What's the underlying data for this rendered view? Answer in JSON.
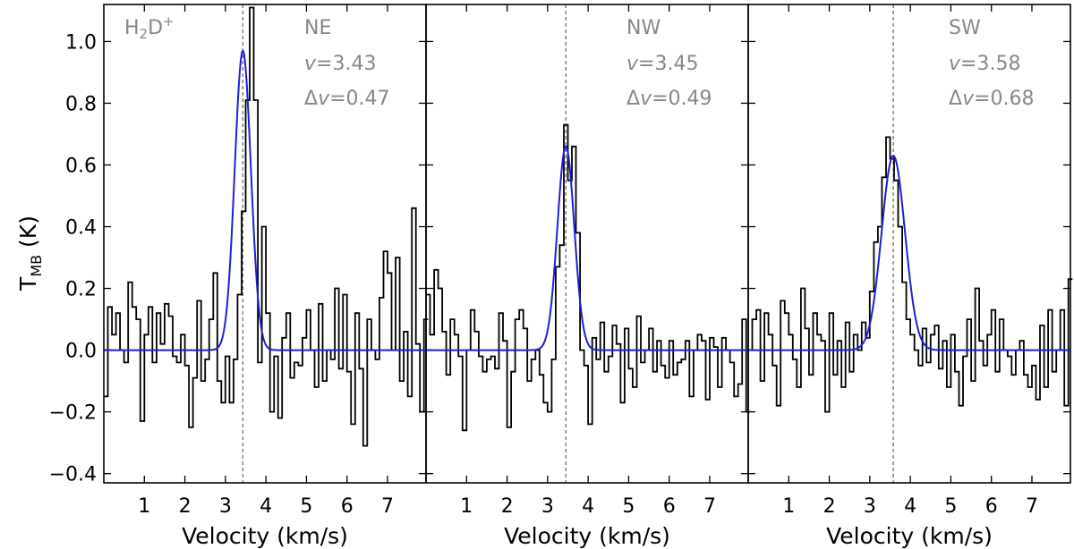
{
  "chart_data": {
    "type": "line",
    "ylabel_main": "T",
    "ylabel_sub": "MB",
    "ylabel_unit": " (K)",
    "xlabel": "Velocity (km/s)",
    "xlim": [
      0,
      7.95
    ],
    "ylim": [
      -0.43,
      1.12
    ],
    "x_ticks": [
      1,
      2,
      3,
      4,
      5,
      6,
      7
    ],
    "y_ticks": [
      -0.4,
      -0.2,
      0.0,
      0.2,
      0.4,
      0.6,
      0.8,
      1.0
    ],
    "y_tick_labels": [
      "−0.4",
      "−0.2",
      "0.0",
      "0.2",
      "0.4",
      "0.6",
      "0.8",
      "1.0"
    ],
    "species_main": "H",
    "species_sub": "2",
    "species_rest": "D",
    "species_sup": "+",
    "colors": {
      "spectrum": "#000000",
      "fit": "#1f1fd6",
      "annotation": "#888888",
      "center_line": "#666666"
    },
    "channel_width": 0.1,
    "x_start": 0.0,
    "panels": [
      {
        "label": "NE",
        "v_text": "=3.43",
        "dv_text": "=0.47",
        "v": 3.43,
        "dv": 0.47,
        "fit_amplitude": 0.97,
        "spectrum": [
          -0.15,
          0.14,
          0.05,
          0.12,
          0.0,
          -0.04,
          0.22,
          0.14,
          0.1,
          -0.23,
          0.05,
          0.14,
          -0.04,
          0.12,
          0.02,
          0.15,
          0.11,
          -0.02,
          -0.04,
          0.05,
          -0.05,
          -0.25,
          -0.09,
          0.16,
          -0.1,
          -0.03,
          0.1,
          0.25,
          -0.1,
          -0.17,
          -0.02,
          -0.17,
          -0.03,
          0.18,
          0.45,
          0.81,
          1.11,
          0.81,
          -0.04,
          0.4,
          0.12,
          -0.2,
          -0.02,
          -0.22,
          0.04,
          0.12,
          -0.09,
          -0.04,
          -0.05,
          0.04,
          0.13,
          0.0,
          -0.12,
          0.15,
          -0.1,
          0.0,
          -0.03,
          0.2,
          -0.06,
          0.18,
          -0.07,
          -0.24,
          0.12,
          -0.06,
          -0.31,
          0.1,
          0.0,
          -0.03,
          0.17,
          0.32,
          0.25,
          0.0,
          0.3,
          -0.1,
          0.06,
          -0.15,
          0.46,
          0.02,
          -0.2,
          0.1
        ]
      },
      {
        "label": "NW",
        "v_text": "=3.45",
        "dv_text": "=0.49",
        "v": 3.45,
        "dv": 0.49,
        "fit_amplitude": 0.66,
        "spectrum": [
          0.18,
          0.05,
          0.26,
          0.2,
          0.06,
          -0.08,
          0.1,
          0.05,
          -0.02,
          -0.26,
          0.0,
          0.13,
          0.06,
          -0.02,
          -0.07,
          -0.03,
          -0.02,
          -0.06,
          0.12,
          0.03,
          -0.25,
          -0.07,
          0.1,
          0.13,
          0.07,
          -0.1,
          -0.03,
          0.0,
          -0.08,
          -0.17,
          -0.2,
          -0.03,
          0.27,
          0.34,
          0.73,
          0.55,
          0.66,
          0.38,
          0.0,
          -0.05,
          -0.24,
          0.04,
          -0.03,
          0.09,
          -0.07,
          -0.02,
          0.08,
          0.02,
          -0.17,
          0.07,
          -0.06,
          -0.12,
          0.11,
          -0.04,
          0.0,
          0.07,
          -0.07,
          0.03,
          -0.05,
          -0.09,
          0.03,
          -0.08,
          -0.04,
          -0.03,
          0.03,
          -0.15,
          0.0,
          0.05,
          0.03,
          -0.16,
          0.04,
          0.01,
          -0.12,
          0.04,
          0.0,
          -0.04,
          -0.15,
          -0.11,
          0.1,
          -0.2
        ]
      },
      {
        "label": "SW",
        "v_text": "=3.58",
        "dv_text": "=0.68",
        "v": 3.58,
        "dv": 0.68,
        "fit_amplitude": 0.63,
        "spectrum": [
          0.0,
          0.1,
          0.13,
          -0.1,
          0.12,
          0.05,
          -0.05,
          -0.18,
          0.16,
          0.12,
          0.05,
          -0.03,
          -0.12,
          0.2,
          0.07,
          -0.08,
          0.12,
          0.05,
          0.03,
          -0.2,
          0.12,
          -0.08,
          0.03,
          -0.12,
          0.09,
          -0.07,
          0.05,
          0.0,
          0.09,
          0.04,
          0.19,
          0.35,
          0.4,
          0.56,
          0.69,
          0.62,
          0.55,
          0.4,
          0.22,
          0.1,
          0.05,
          0.0,
          -0.05,
          0.07,
          -0.04,
          0.05,
          0.08,
          -0.06,
          0.03,
          -0.12,
          0.05,
          -0.07,
          -0.18,
          -0.02,
          0.1,
          -0.1,
          0.2,
          0.03,
          -0.05,
          0.05,
          0.13,
          -0.07,
          0.1,
          0.0,
          -0.02,
          -0.08,
          0.0,
          0.03,
          -0.08,
          -0.12,
          -0.05,
          -0.16,
          0.08,
          -0.12,
          0.13,
          -0.07,
          0.0,
          0.13,
          -0.18,
          0.23
        ]
      }
    ]
  }
}
